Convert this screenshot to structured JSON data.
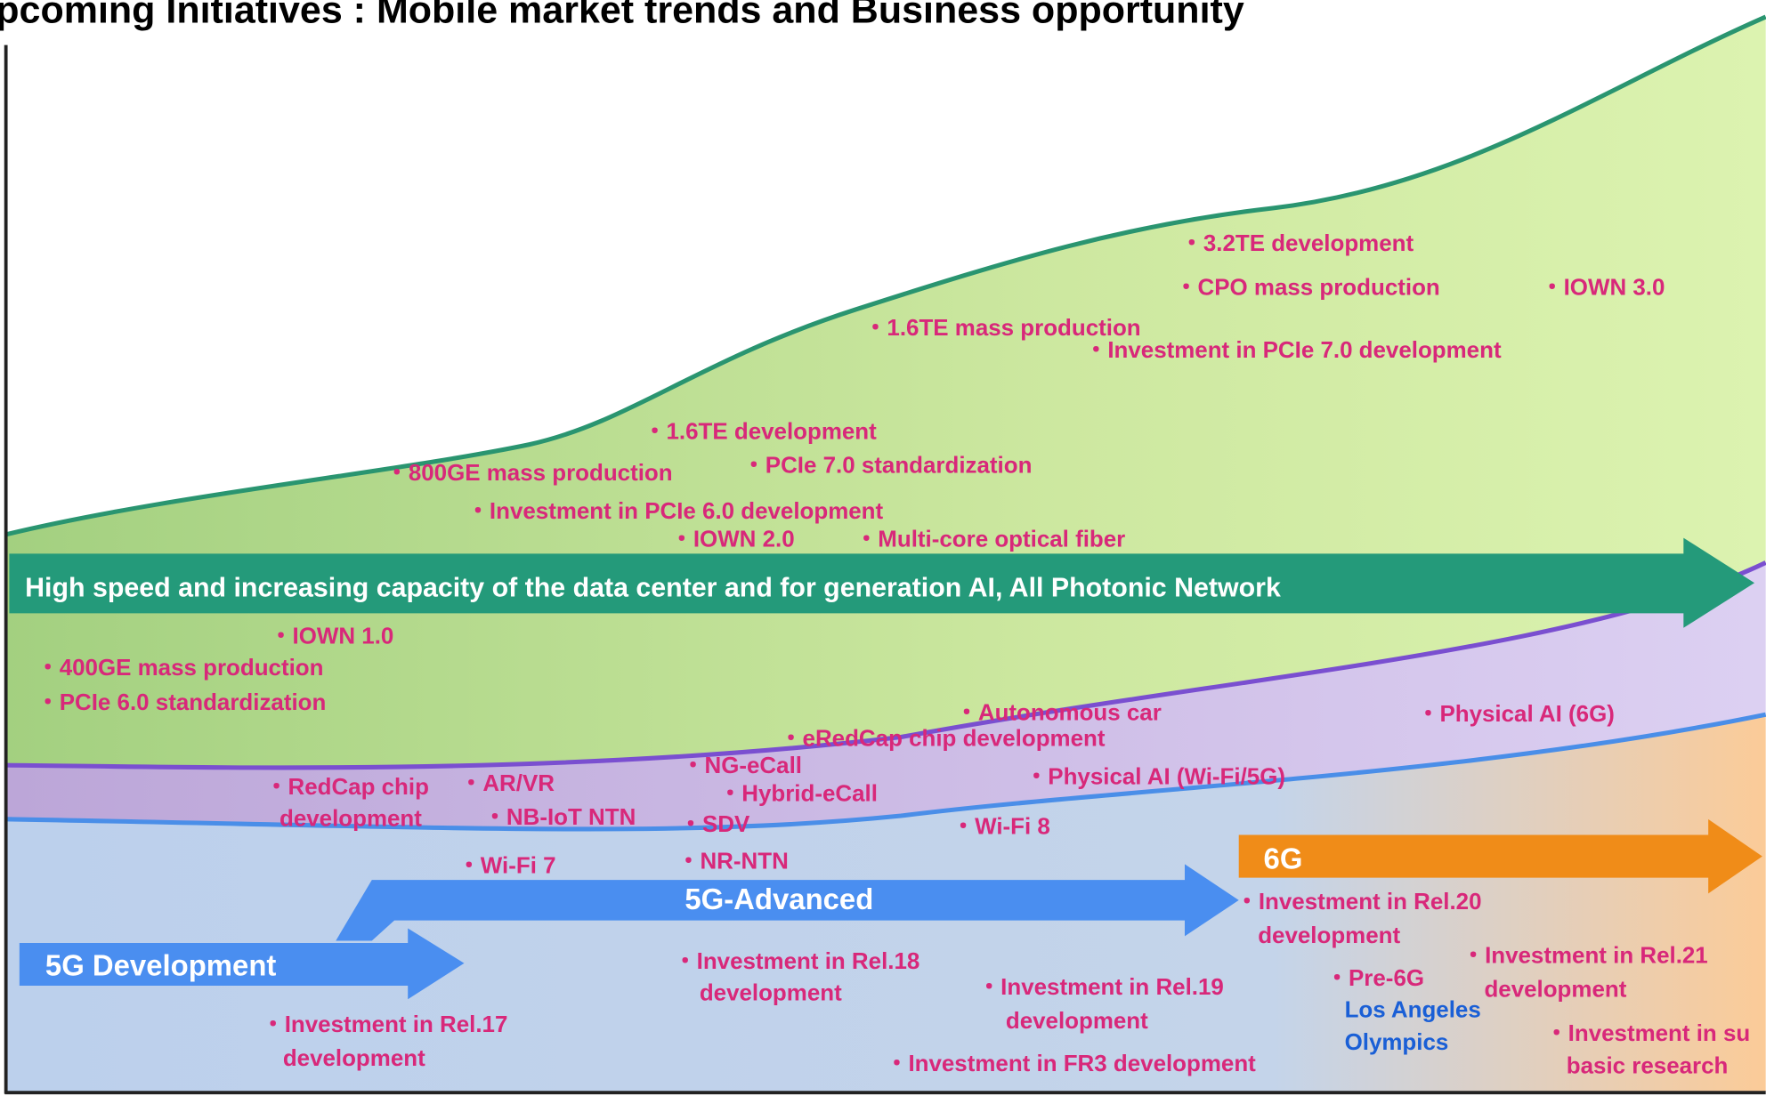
{
  "title": "pcoming Initiatives : Mobile market trends and Business opportunity",
  "arrows": {
    "data_center": "High speed and increasing capacity of the data center and for generation AI, All Photonic Network",
    "six_g": "6G",
    "five_g_advanced": "5G-Advanced",
    "five_g": "5G Development"
  },
  "items": [
    {
      "lines": [
        "・3.2TE development"
      ]
    },
    {
      "lines": [
        "・CPO mass production"
      ]
    },
    {
      "lines": [
        "・IOWN 3.0"
      ]
    },
    {
      "lines": [
        "・1.6TE mass production"
      ]
    },
    {
      "lines": [
        "・Investment in PCIe 7.0 development"
      ]
    },
    {
      "lines": [
        "・1.6TE development"
      ]
    },
    {
      "lines": [
        "・800GE mass production"
      ]
    },
    {
      "lines": [
        "・PCIe 7.0 standardization"
      ]
    },
    {
      "lines": [
        "・Investment in PCIe 6.0 development"
      ]
    },
    {
      "lines": [
        "・IOWN 2.0"
      ]
    },
    {
      "lines": [
        "・Multi-core optical fiber"
      ]
    },
    {
      "lines": [
        "・IOWN 1.0"
      ]
    },
    {
      "lines": [
        "・400GE mass production"
      ]
    },
    {
      "lines": [
        "・PCIe 6.0 standardization"
      ]
    },
    {
      "lines": [
        "・Autonomous car"
      ]
    },
    {
      "lines": [
        "・eRedCap chip development"
      ]
    },
    {
      "lines": [
        "・Physical AI (6G)"
      ]
    },
    {
      "lines": [
        "・NG-eCall"
      ]
    },
    {
      "lines": [
        "・Hybrid-eCall"
      ]
    },
    {
      "lines": [
        "・Physical AI (Wi-Fi/5G)"
      ]
    },
    {
      "lines": [
        "・RedCap chip",
        "development"
      ]
    },
    {
      "lines": [
        "・AR/VR"
      ]
    },
    {
      "lines": [
        "・NB-IoT NTN"
      ]
    },
    {
      "lines": [
        "・SDV"
      ]
    },
    {
      "lines": [
        "・Wi-Fi 8"
      ]
    },
    {
      "lines": [
        "・Wi-Fi 7"
      ]
    },
    {
      "lines": [
        "・NR-NTN"
      ]
    },
    {
      "lines": [
        "・Investment in Rel.20",
        "development"
      ]
    },
    {
      "lines": [
        "・Investment in Rel.18",
        "development"
      ]
    },
    {
      "lines": [
        "・Investment in Rel.21",
        "development"
      ]
    },
    {
      "lines": [
        "・Investment in Rel.19",
        "development"
      ]
    },
    {
      "lines": [
        "・Pre-6G"
      ]
    },
    {
      "lines": [
        "Los Angeles",
        "Olympics"
      ],
      "color": "#1a5fd6"
    },
    {
      "lines": [
        "・Investment in Rel.17",
        "development"
      ]
    },
    {
      "lines": [
        "・Investment in FR3 development"
      ]
    },
    {
      "lines": [
        "・Investment in su",
        "basic research"
      ]
    }
  ]
}
